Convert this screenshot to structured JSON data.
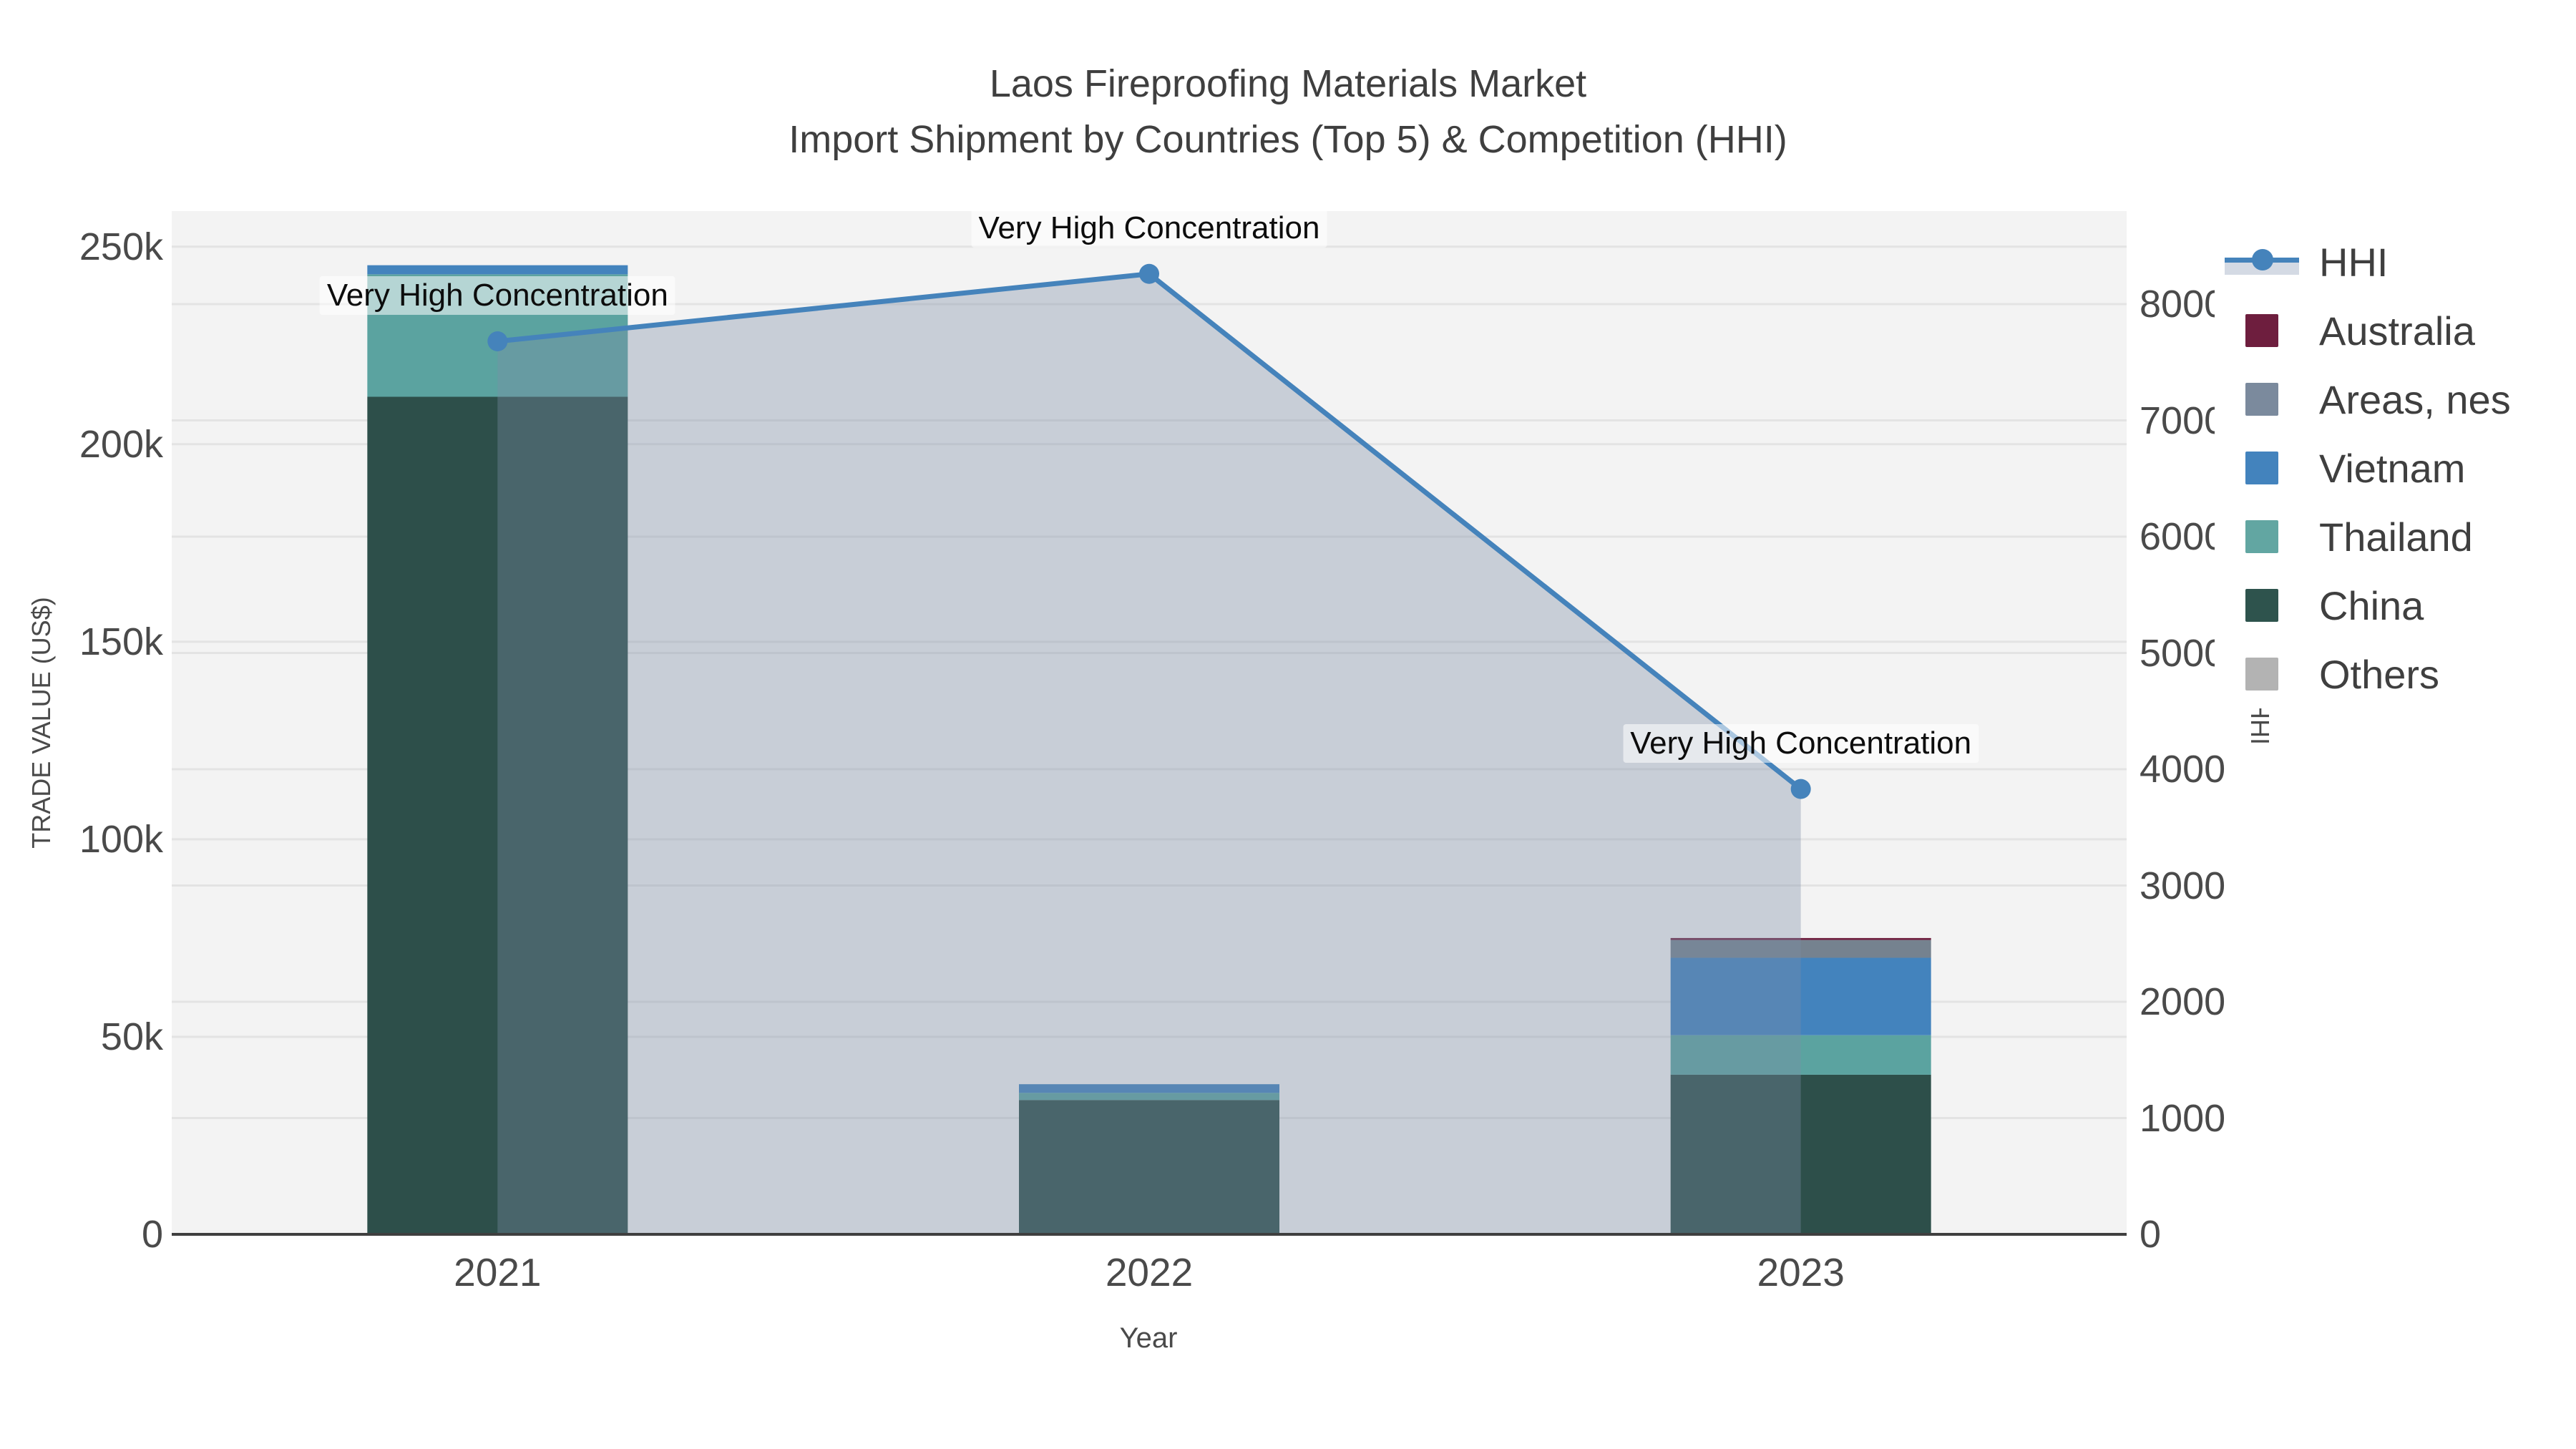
{
  "title": {
    "line1": "Laos Fireproofing Materials Market",
    "line2": "Import Shipment by Countries (Top 5) & Competition (HHI)"
  },
  "chart_data": {
    "type": "bar+line",
    "categories": [
      "2021",
      "2022",
      "2023"
    ],
    "series": [
      {
        "name": "China",
        "color": "#2d4f4a",
        "values": [
          212000,
          34000,
          40400
        ]
      },
      {
        "name": "Thailand",
        "color": "#5ba3a0",
        "values": [
          31000,
          1800,
          10000
        ]
      },
      {
        "name": "Vietnam",
        "color": "#4383bd",
        "values": [
          2300,
          2200,
          19600
        ]
      },
      {
        "name": "Areas, nes",
        "color": "#75828f",
        "values": [
          0,
          0,
          4500
        ]
      },
      {
        "name": "Australia",
        "color": "#6e1e3e",
        "values": [
          0,
          0,
          500
        ]
      },
      {
        "name": "Others",
        "color": "#b3b3b3",
        "values": [
          0,
          0,
          0
        ]
      }
    ],
    "hhi": {
      "name": "HHI",
      "line_color": "#4583bb",
      "fill_color": "rgba(125,142,165,0.36)",
      "values": [
        7680,
        8260,
        3830
      ]
    },
    "annotations": [
      {
        "text": "Very High Concentration",
        "category_index": 0
      },
      {
        "text": "Very High Concentration",
        "category_index": 1
      },
      {
        "text": "Very High Concentration",
        "category_index": 2
      }
    ],
    "x_axis": {
      "label": "Year"
    },
    "y1_axis": {
      "label": "TRADE VALUE (US$)",
      "max": 259000,
      "ticks": [
        0,
        50000,
        100000,
        150000,
        200000,
        250000
      ],
      "tick_labels": [
        "0",
        "50k",
        "100k",
        "150k",
        "200k",
        "250k"
      ]
    },
    "y2_axis": {
      "label": "HHI",
      "max": 8800,
      "ticks": [
        0,
        1000,
        2000,
        3000,
        4000,
        5000,
        6000,
        7000,
        8000
      ],
      "tick_labels": [
        "0",
        "1000",
        "2000",
        "3000",
        "4000",
        "5000",
        "6000",
        "7000",
        "8000"
      ]
    },
    "legend": [
      {
        "name": "HHI",
        "symbol": "line"
      },
      {
        "name": "Australia",
        "symbol": "swatch",
        "color": "#6e1e3e"
      },
      {
        "name": "Areas, nes",
        "symbol": "swatch",
        "color": "#7b8a9d"
      },
      {
        "name": "Vietnam",
        "symbol": "swatch",
        "color": "#4383bd"
      },
      {
        "name": "Thailand",
        "symbol": "swatch",
        "color": "#62a6a2"
      },
      {
        "name": "China",
        "symbol": "swatch",
        "color": "#2e534d"
      },
      {
        "name": "Others",
        "symbol": "swatch",
        "color": "#b3b3b3"
      }
    ],
    "layout": {
      "plot_bg": "#f3f3f3",
      "grid_color": "#e3e3e3",
      "axis_line_color": "#3f3f3f"
    }
  }
}
